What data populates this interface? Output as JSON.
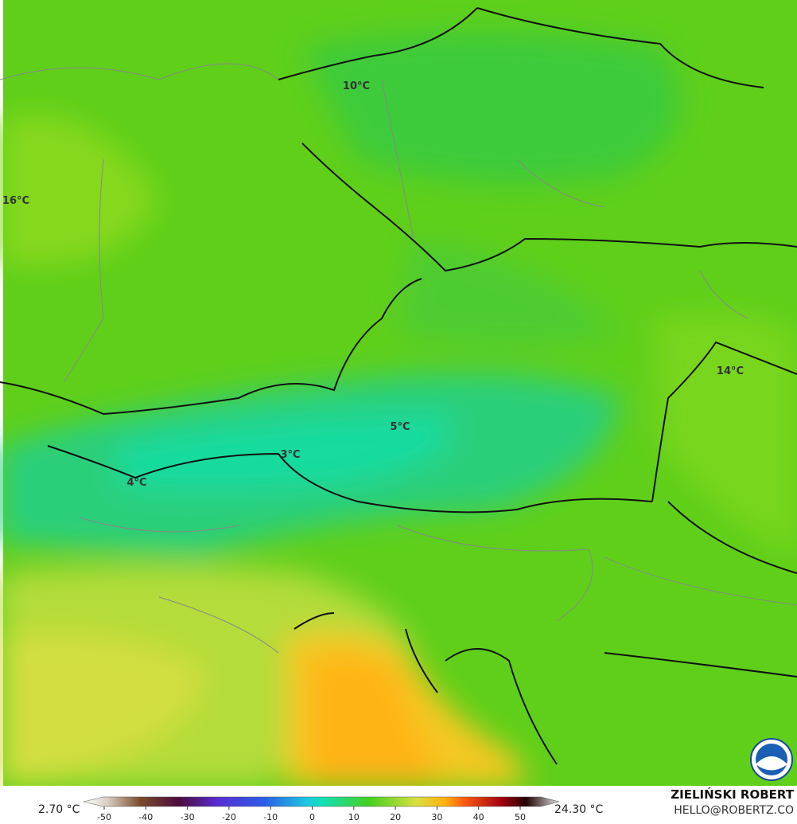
{
  "map": {
    "labels": [
      "10°C",
      "16°C",
      "14°C",
      "5°C",
      "3°C",
      "4°C"
    ]
  },
  "legend": {
    "min_label": "2.70 °C",
    "max_label": "24.30 °C",
    "ticks": [
      -50,
      -40,
      -30,
      -20,
      -10,
      0,
      10,
      20,
      30,
      40,
      50
    ]
  },
  "credit": {
    "author": "ZIELIŃSKI ROBERT",
    "contact": "HELLO@ROBERTZ.CO"
  }
}
